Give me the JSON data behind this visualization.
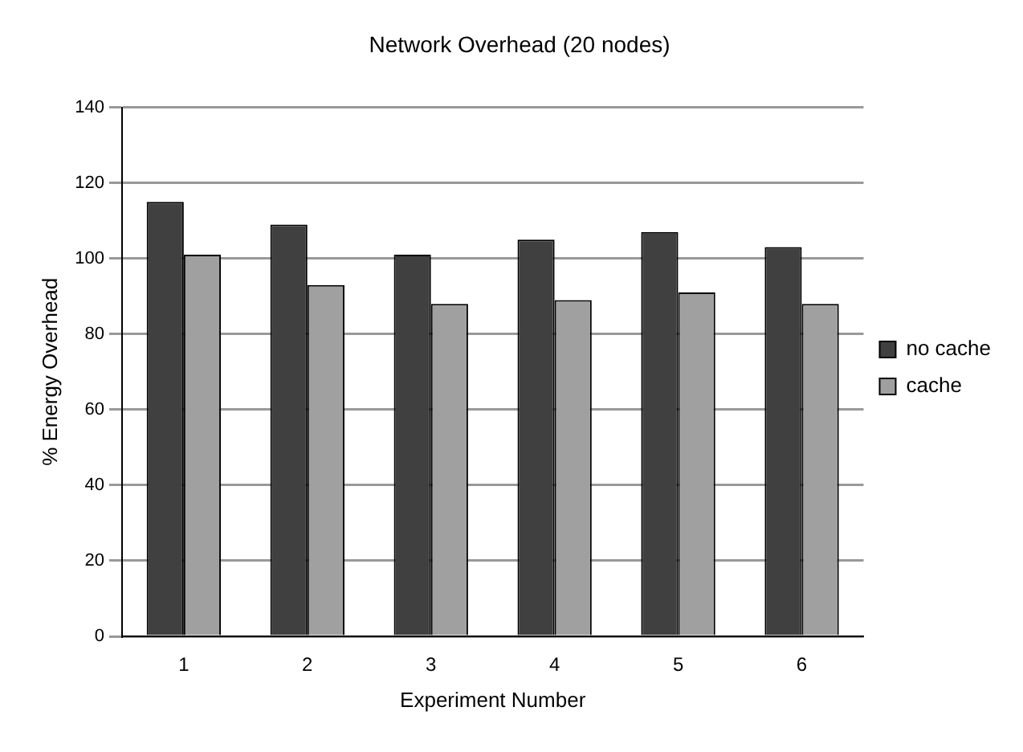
{
  "chart_data": {
    "type": "bar",
    "title": "Network Overhead (20 nodes)",
    "xlabel": "Experiment Number",
    "ylabel": "% Energy Overhead",
    "categories": [
      "1",
      "2",
      "3",
      "4",
      "5",
      "6"
    ],
    "series": [
      {
        "name": "no cache",
        "color": "#404040",
        "values": [
          115,
          109,
          101,
          105,
          107,
          103
        ]
      },
      {
        "name": "cache",
        "color": "#a0a0a0",
        "values": [
          101,
          93,
          88,
          89,
          91,
          88
        ]
      }
    ],
    "ylim": [
      0,
      140
    ],
    "yticks": [
      0,
      20,
      40,
      60,
      80,
      100,
      120,
      140
    ],
    "grid": "y",
    "legend": "right"
  }
}
